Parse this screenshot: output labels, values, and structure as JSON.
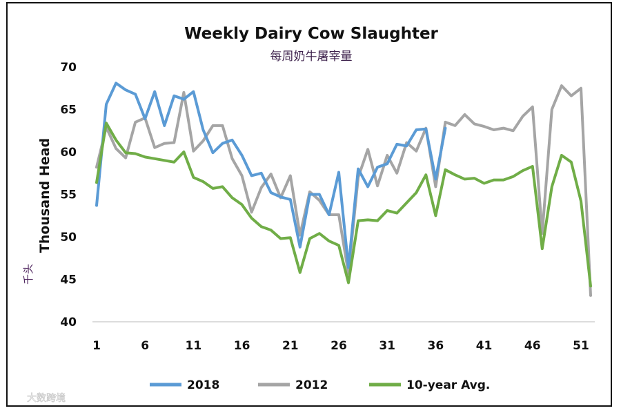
{
  "chart_data": {
    "type": "line",
    "title": "Weekly Dairy Cow Slaughter",
    "subtitle": "每周奶牛屠宰量",
    "ylabel": "Thousand Head",
    "ylabel_cn": "千头",
    "xlabel": "",
    "ylim": [
      40,
      70
    ],
    "yticks": [
      "40",
      "45",
      "50",
      "55",
      "60",
      "65",
      "70"
    ],
    "xlim": [
      1,
      52
    ],
    "xticks": [
      "1",
      "6",
      "11",
      "16",
      "21",
      "26",
      "31",
      "36",
      "41",
      "46",
      "51"
    ],
    "grid": false,
    "legend_position": "bottom",
    "series": [
      {
        "name": "2018",
        "color": "#5B9BD5",
        "values": [
          53.7,
          65.6,
          68.1,
          67.3,
          66.8,
          63.9,
          67.1,
          63.1,
          66.6,
          66.2,
          67.1,
          62.6,
          59.9,
          61.0,
          61.4,
          59.6,
          57.2,
          57.5,
          55.2,
          54.7,
          54.4,
          48.8,
          55.0,
          55.0,
          52.6,
          57.6,
          46.4,
          58.0,
          55.9,
          58.2,
          58.6,
          60.9,
          60.7,
          62.6,
          62.7,
          56.8,
          62.8
        ]
      },
      {
        "name": "2012",
        "color": "#A5A5A5",
        "values": [
          58.2,
          62.9,
          60.4,
          59.3,
          63.5,
          64.0,
          60.5,
          61.0,
          61.1,
          67.0,
          60.1,
          61.3,
          63.1,
          63.1,
          59.2,
          57.2,
          52.9,
          55.8,
          57.4,
          54.6,
          57.2,
          50.2,
          55.3,
          54.3,
          52.6,
          52.6,
          45.7,
          57.0,
          60.3,
          56.0,
          59.6,
          57.5,
          61.1,
          60.1,
          62.8,
          55.9,
          63.5,
          63.1,
          64.4,
          63.3,
          63.0,
          62.6,
          62.8,
          62.5,
          64.2,
          65.3,
          50.4,
          65.0,
          67.8,
          66.6,
          67.5,
          43.1
        ]
      },
      {
        "name": "10-year Avg.",
        "color": "#70AD47",
        "values": [
          56.4,
          63.4,
          61.4,
          59.9,
          59.8,
          59.4,
          59.2,
          59.0,
          58.8,
          60.0,
          57.0,
          56.5,
          55.7,
          55.9,
          54.6,
          53.8,
          52.2,
          51.2,
          50.8,
          49.8,
          49.9,
          45.8,
          49.8,
          50.4,
          49.5,
          49.0,
          44.6,
          51.9,
          52.0,
          51.9,
          53.1,
          52.8,
          54.0,
          55.2,
          57.3,
          52.5,
          57.9,
          57.3,
          56.8,
          56.9,
          56.3,
          56.7,
          56.7,
          57.1,
          57.8,
          58.3,
          48.6,
          55.9,
          59.6,
          58.8,
          54.2,
          44.2
        ]
      }
    ]
  },
  "watermark": "大数跨境"
}
